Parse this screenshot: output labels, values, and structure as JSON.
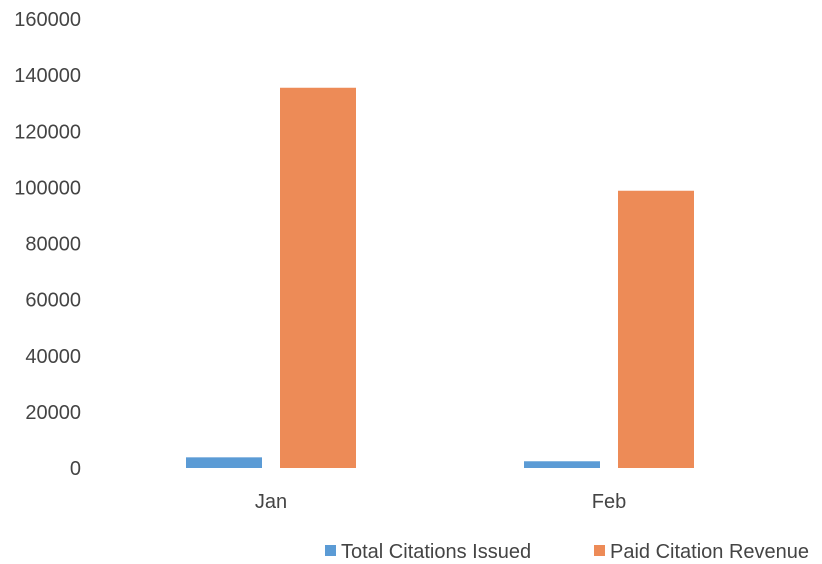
{
  "chart_data": {
    "type": "bar",
    "categories": [
      "Jan",
      "Feb"
    ],
    "series": [
      {
        "name": "Total Citations Issued",
        "values": [
          3800,
          2400
        ],
        "color": "#5b9bd5"
      },
      {
        "name": "Paid Citation Revenue",
        "values": [
          135500,
          98800
        ],
        "color": "#ed8b57"
      }
    ],
    "title": "",
    "xlabel": "",
    "ylabel": "",
    "ylim": [
      0,
      160000
    ],
    "yticks": [
      "0",
      "20000",
      "40000",
      "60000",
      "80000",
      "100000",
      "120000",
      "140000",
      "160000"
    ],
    "grid": false,
    "legend_position": "bottom-right"
  }
}
